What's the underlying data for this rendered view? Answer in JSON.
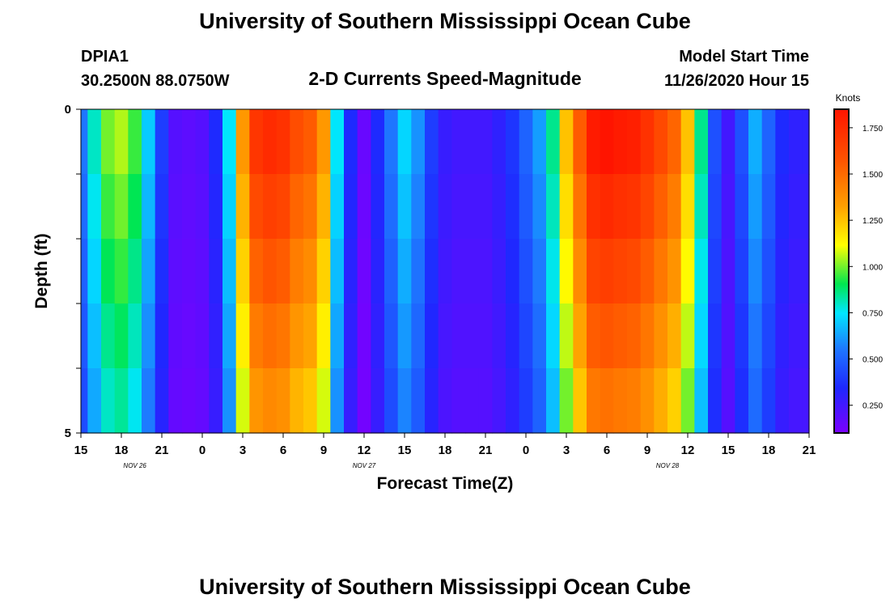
{
  "chart_data": {
    "type": "heatmap",
    "title": "University of Southern Mississippi Ocean Cube",
    "footer_title": "University of Southern Mississippi Ocean Cube",
    "station": "DPIA1",
    "coordinates": "30.2500N 88.0750W",
    "subtitle": "2-D Currents Speed-Magnitude",
    "model_start_label": "Model Start Time",
    "model_start_value": "11/26/2020 Hour 15",
    "xlabel": "Forecast Time(Z)",
    "ylabel": "Depth (ft)",
    "x_tick_labels": [
      "15",
      "18",
      "21",
      "0",
      "3",
      "6",
      "9",
      "12",
      "15",
      "18",
      "21",
      "0",
      "3",
      "6",
      "9",
      "12",
      "15",
      "18",
      "21"
    ],
    "x_range_hours": [
      0,
      54
    ],
    "date_labels": [
      {
        "text": "NOV 26",
        "hour": 4
      },
      {
        "text": "NOV 27",
        "hour": 21
      },
      {
        "text": "NOV 28",
        "hour": 43.5
      }
    ],
    "y_tick_labels": [
      "0",
      "5"
    ],
    "ylim": [
      0,
      5
    ],
    "depth_levels": 5,
    "colorbar": {
      "label": "Knots",
      "min": 0.1,
      "max": 1.85,
      "tick_labels": [
        "1.750",
        "1.500",
        "1.250",
        "1.000",
        "0.750",
        "0.500",
        "0.250"
      ],
      "tick_values": [
        1.75,
        1.5,
        1.25,
        1.0,
        0.75,
        0.5,
        0.25
      ]
    },
    "speed_profile": {
      "hours": [
        0,
        1,
        2,
        3,
        4,
        5,
        6,
        7,
        8,
        9,
        10,
        11,
        12,
        13,
        14,
        15,
        16,
        17,
        18,
        19,
        20,
        21,
        22,
        23,
        24,
        25,
        26,
        27,
        28,
        29,
        30,
        31,
        32,
        33,
        34,
        35,
        36,
        37,
        38,
        39,
        40,
        41,
        42,
        43,
        44,
        45,
        46,
        47,
        48,
        49,
        50,
        51,
        52,
        53,
        54
      ],
      "surface_knots": [
        0.55,
        0.8,
        1.0,
        1.05,
        0.95,
        0.7,
        0.4,
        0.2,
        0.18,
        0.2,
        0.35,
        0.75,
        1.35,
        1.7,
        1.75,
        1.72,
        1.6,
        1.55,
        1.35,
        0.75,
        0.35,
        0.15,
        0.35,
        0.55,
        0.72,
        0.6,
        0.4,
        0.28,
        0.25,
        0.25,
        0.25,
        0.3,
        0.38,
        0.5,
        0.62,
        0.85,
        1.25,
        1.55,
        1.82,
        1.85,
        1.82,
        1.8,
        1.72,
        1.62,
        1.52,
        1.25,
        0.85,
        0.45,
        0.25,
        0.45,
        0.65,
        0.5,
        0.35,
        0.3,
        0.3
      ],
      "level_factors": [
        1.0,
        0.95,
        0.9,
        0.85,
        0.8
      ]
    }
  }
}
